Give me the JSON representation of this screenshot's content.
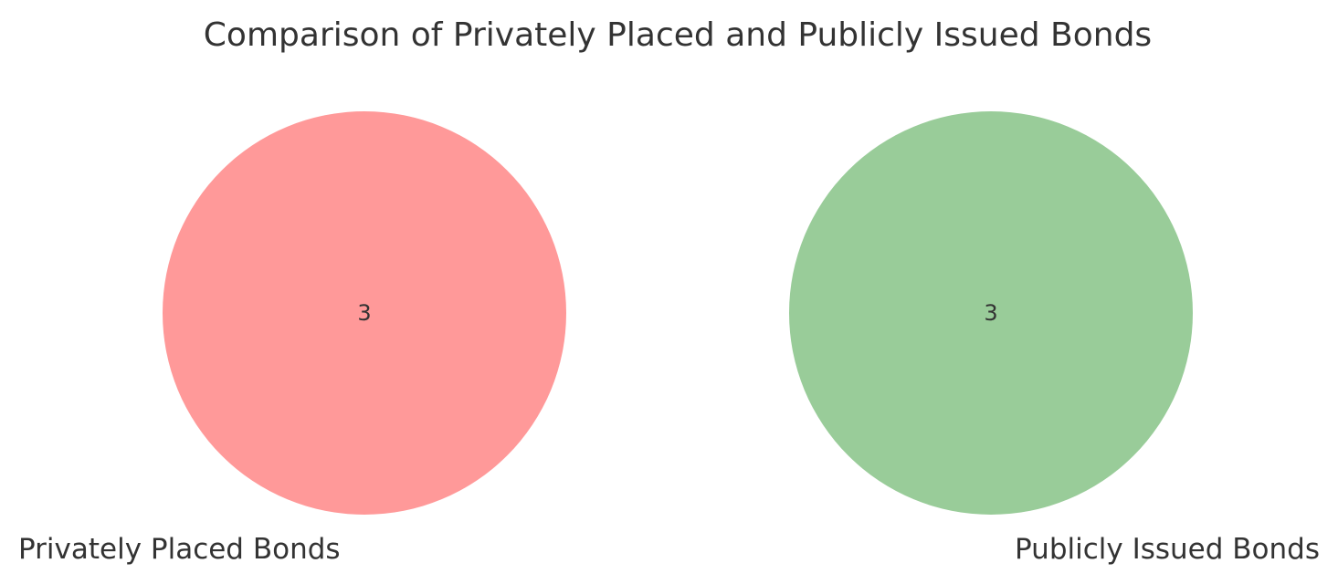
{
  "diagram": {
    "title": "Comparison of Privately Placed and Publicly Issued Bonds",
    "type": "venn",
    "sets": [
      {
        "label": "Privately Placed Bonds",
        "count": "3",
        "color": "#ff9999"
      },
      {
        "label": "Publicly Issued Bonds",
        "count": "3",
        "color": "#99cc99"
      }
    ]
  }
}
